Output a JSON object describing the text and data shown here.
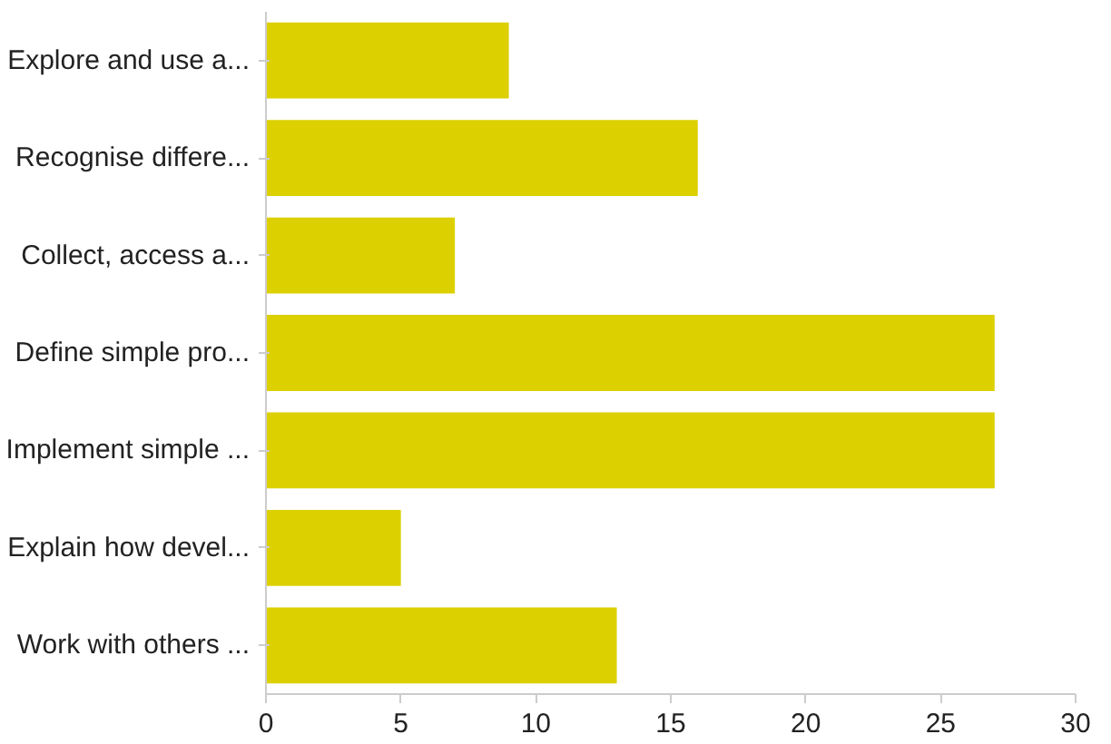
{
  "chart_data": {
    "type": "bar",
    "orientation": "horizontal",
    "categories": [
      "Explore and use a...",
      "Recognise differe...",
      "Collect, access a...",
      "Define simple pro...",
      "Implement simple ...",
      "Explain how devel...",
      "Work with others ..."
    ],
    "values": [
      9,
      16,
      7,
      27,
      27,
      5,
      13
    ],
    "color": "#dcd000",
    "xlim": [
      0,
      30
    ],
    "xticks": [
      0,
      5,
      10,
      15,
      20,
      25,
      30
    ],
    "grid": false
  }
}
